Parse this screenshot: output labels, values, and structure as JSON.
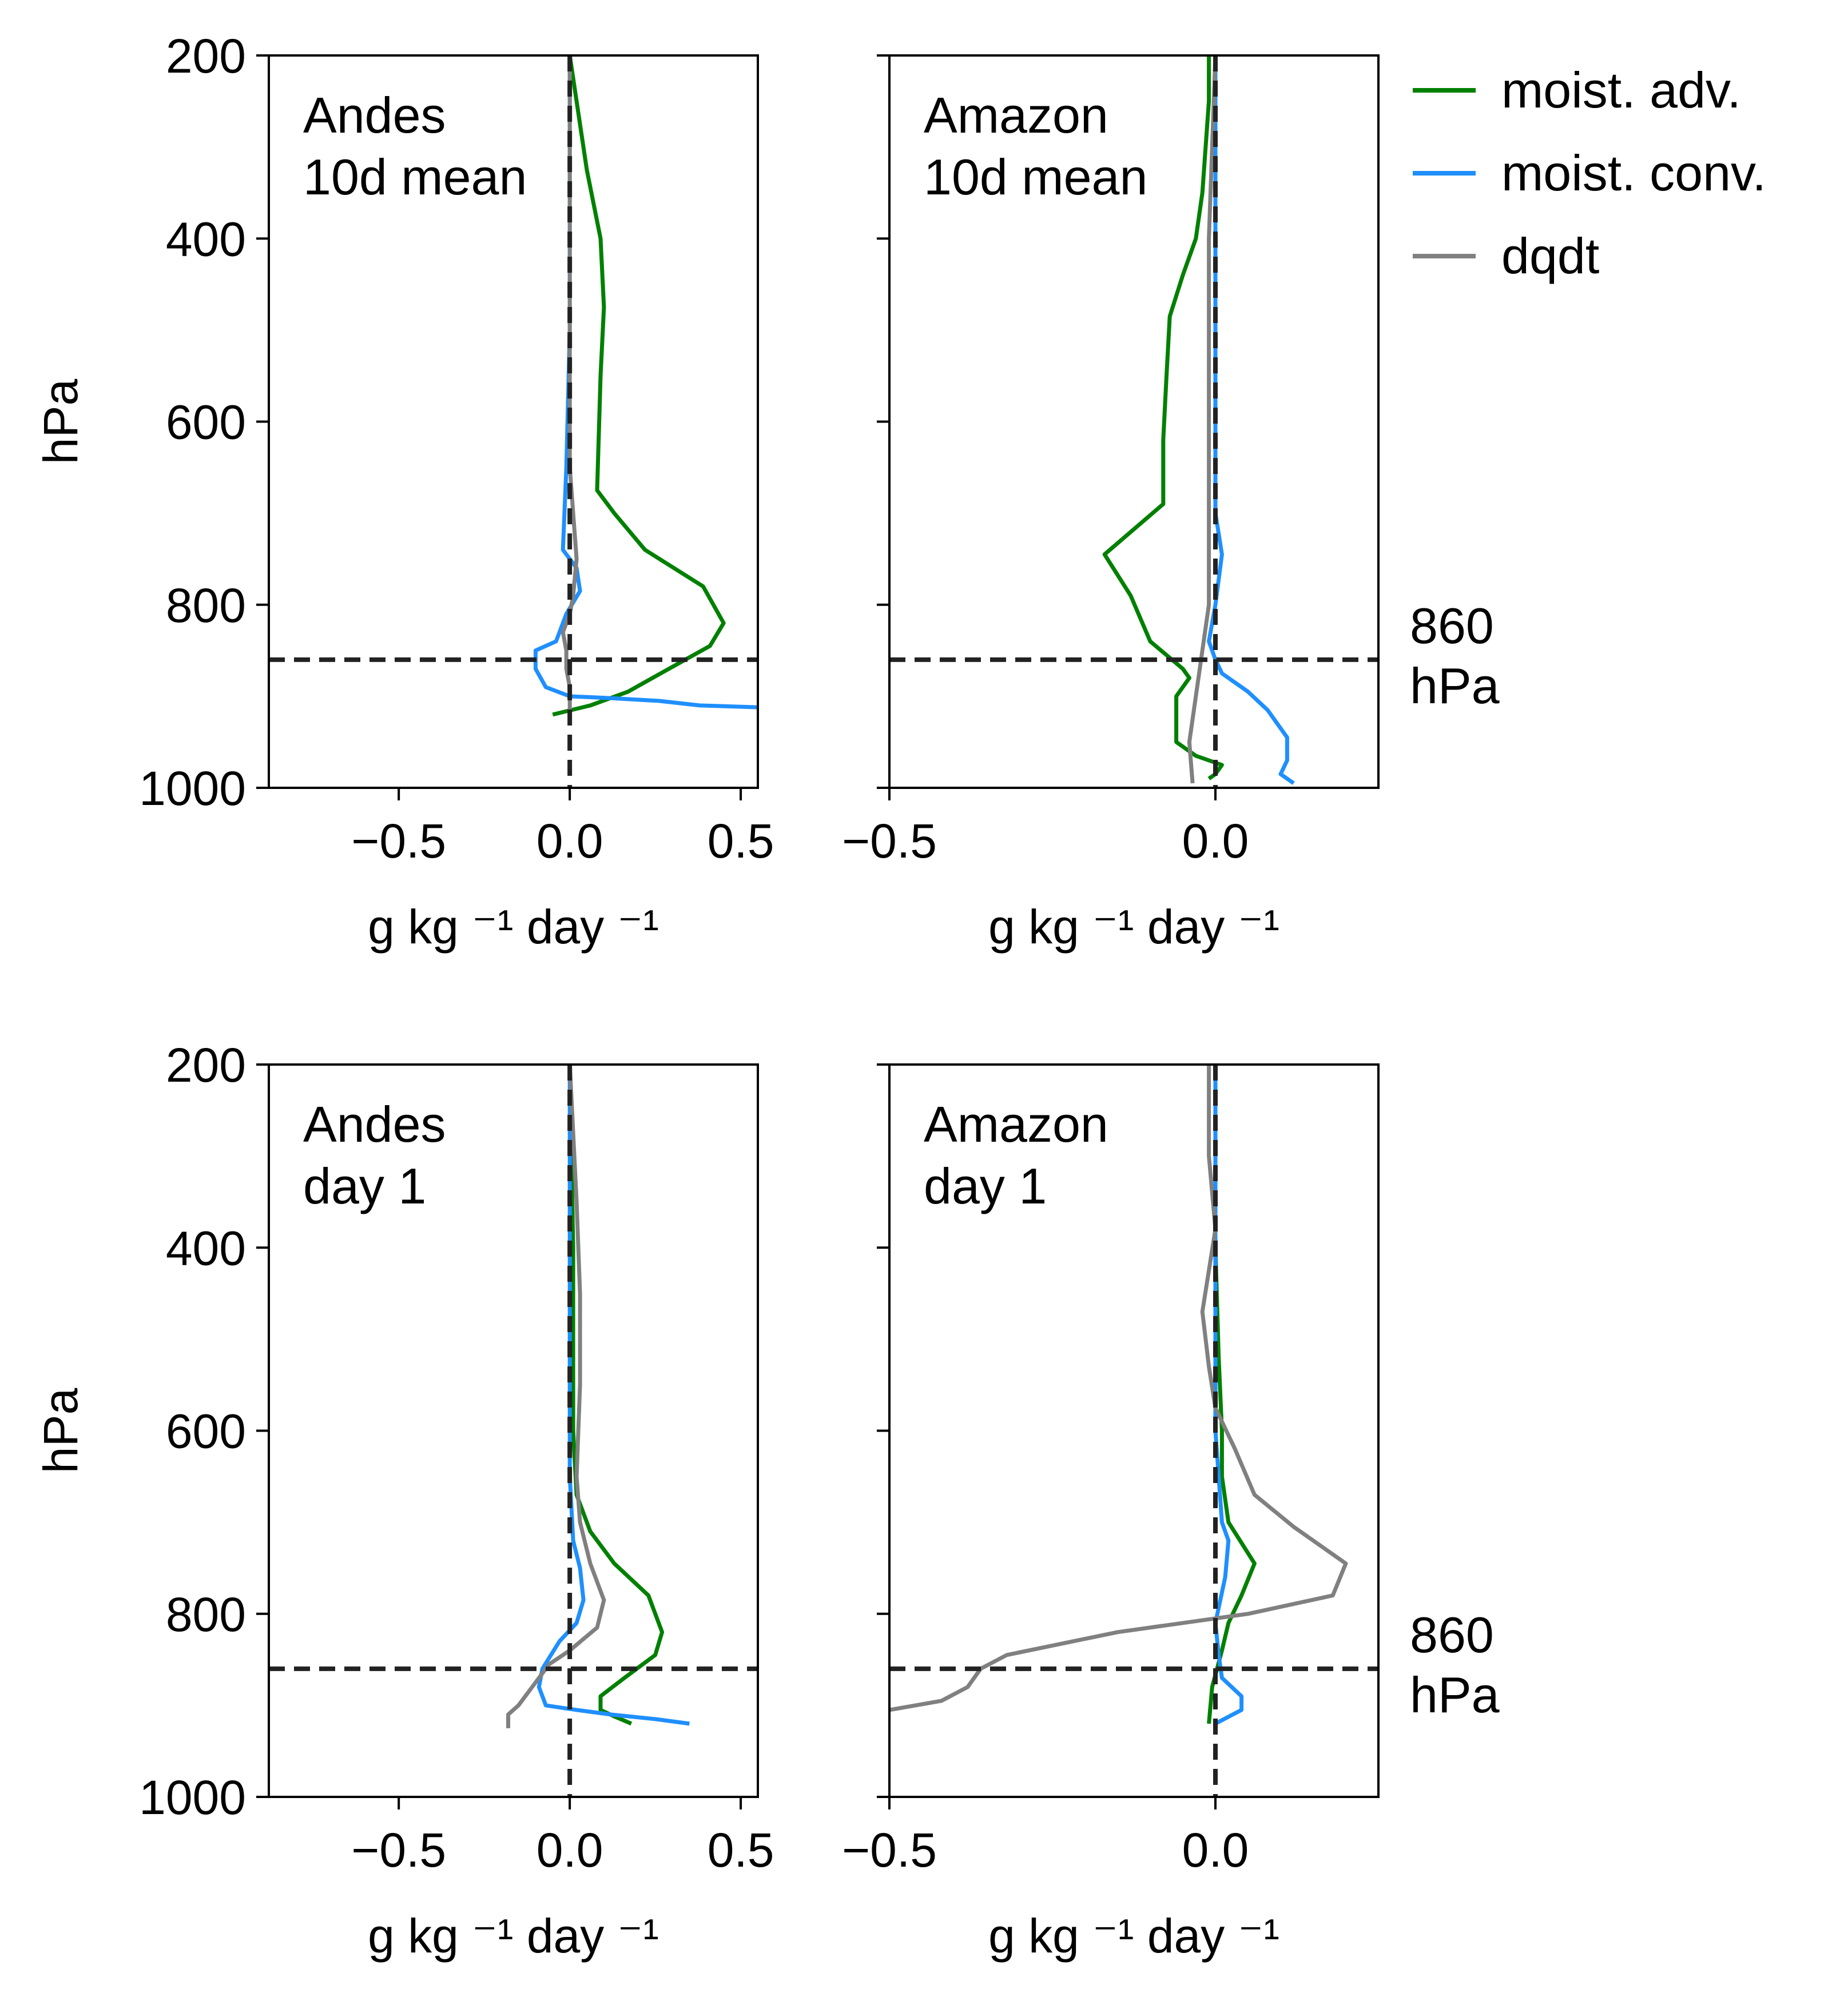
{
  "colors": {
    "moist_adv": "#008000",
    "moist_conv": "#1f8fff",
    "dqdt": "#808080",
    "reference": "#222222",
    "axes": "#000000"
  },
  "legend": {
    "placement": "right of top-right panel",
    "items": [
      {
        "key": "moist_adv",
        "label": "moist. adv."
      },
      {
        "key": "moist_conv",
        "label": "moist. conv."
      },
      {
        "key": "dqdt",
        "label": "dqdt"
      }
    ]
  },
  "reference": {
    "pressure": 860,
    "label_line1": "860",
    "label_line2": "hPa"
  },
  "chart_data": [
    {
      "type": "line",
      "title_lines": [
        "Andes",
        "10d mean"
      ],
      "xlabel": "g kg ⁻¹ day ⁻¹",
      "ylabel": "hPa",
      "xlim": [
        -0.88,
        0.55
      ],
      "ylim": [
        1000,
        200
      ],
      "y_inverted": true,
      "xticks": [
        -0.5,
        0.0,
        0.5
      ],
      "xtick_labels": [
        "−0.5",
        "0.0",
        "0.5"
      ],
      "yticks": [
        200,
        400,
        600,
        800,
        1000
      ],
      "ytick_labels": [
        "200",
        "400",
        "600",
        "800",
        "1000"
      ],
      "grid": false,
      "series": [
        {
          "name": "moist. adv.",
          "key": "moist_adv",
          "points": [
            [
              0.0,
              200
            ],
            [
              0.02,
              250
            ],
            [
              0.05,
              325
            ],
            [
              0.09,
              400
            ],
            [
              0.1,
              475
            ],
            [
              0.09,
              550
            ],
            [
              0.08,
              675
            ],
            [
              0.13,
              700
            ],
            [
              0.22,
              740
            ],
            [
              0.39,
              780
            ],
            [
              0.45,
              820
            ],
            [
              0.41,
              845
            ],
            [
              0.29,
              870
            ],
            [
              0.17,
              895
            ],
            [
              0.06,
              910
            ],
            [
              -0.05,
              920
            ]
          ]
        },
        {
          "name": "moist. conv.",
          "key": "moist_conv",
          "points": [
            [
              0.0,
              200
            ],
            [
              0.0,
              500
            ],
            [
              -0.01,
              650
            ],
            [
              -0.02,
              740
            ],
            [
              0.02,
              760
            ],
            [
              0.03,
              785
            ],
            [
              -0.01,
              810
            ],
            [
              -0.04,
              840
            ],
            [
              -0.1,
              850
            ],
            [
              -0.1,
              870
            ],
            [
              -0.07,
              890
            ],
            [
              0.0,
              900
            ],
            [
              0.12,
              902
            ],
            [
              0.26,
              905
            ],
            [
              0.38,
              910
            ],
            [
              0.55,
              912
            ]
          ]
        },
        {
          "name": "dqdt",
          "key": "dqdt",
          "points": [
            [
              0.0,
              200
            ],
            [
              0.0,
              500
            ],
            [
              0.0,
              650
            ],
            [
              0.01,
              700
            ],
            [
              0.02,
              750
            ],
            [
              0.01,
              790
            ],
            [
              0.0,
              810
            ],
            [
              -0.02,
              830
            ],
            [
              -0.01,
              850
            ],
            [
              -0.01,
              870
            ],
            [
              0.0,
              890
            ],
            [
              0.0,
              920
            ]
          ]
        }
      ]
    },
    {
      "type": "line",
      "title_lines": [
        "Amazon",
        "10d mean"
      ],
      "xlabel": "g kg ⁻¹ day ⁻¹",
      "ylabel": "",
      "xlim": [
        -0.5,
        0.25
      ],
      "ylim": [
        1000,
        200
      ],
      "y_inverted": true,
      "xticks": [
        -0.5,
        0.0
      ],
      "xtick_labels": [
        "−0.5",
        "0.0"
      ],
      "yticks": [
        200,
        400,
        600,
        800,
        1000
      ],
      "ytick_labels": [
        "",
        "",
        "",
        "",
        ""
      ],
      "grid": false,
      "series": [
        {
          "name": "moist. adv.",
          "key": "moist_adv",
          "points": [
            [
              -0.01,
              200
            ],
            [
              -0.01,
              250
            ],
            [
              -0.015,
              300
            ],
            [
              -0.02,
              350
            ],
            [
              -0.03,
              400
            ],
            [
              -0.05,
              440
            ],
            [
              -0.07,
              485
            ],
            [
              -0.075,
              550
            ],
            [
              -0.08,
              620
            ],
            [
              -0.08,
              690
            ],
            [
              -0.17,
              745
            ],
            [
              -0.13,
              790
            ],
            [
              -0.1,
              840
            ],
            [
              -0.05,
              870
            ],
            [
              -0.04,
              880
            ],
            [
              -0.06,
              900
            ],
            [
              -0.06,
              950
            ],
            [
              -0.03,
              965
            ],
            [
              0.01,
              975
            ],
            [
              0.0,
              985
            ],
            [
              -0.01,
              990
            ]
          ]
        },
        {
          "name": "moist. conv.",
          "key": "moist_conv",
          "points": [
            [
              0.0,
              200
            ],
            [
              0.0,
              650
            ],
            [
              0.0,
              700
            ],
            [
              0.01,
              745
            ],
            [
              0.0,
              800
            ],
            [
              -0.01,
              840
            ],
            [
              0.0,
              860
            ],
            [
              0.01,
              875
            ],
            [
              0.05,
              895
            ],
            [
              0.08,
              915
            ],
            [
              0.11,
              945
            ],
            [
              0.11,
              970
            ],
            [
              0.1,
              985
            ],
            [
              0.12,
              995
            ]
          ]
        },
        {
          "name": "dqdt",
          "key": "dqdt",
          "points": [
            [
              0.0,
              200
            ],
            [
              -0.01,
              400
            ],
            [
              -0.01,
              600
            ],
            [
              -0.01,
              800
            ],
            [
              -0.02,
              850
            ],
            [
              -0.03,
              900
            ],
            [
              -0.04,
              950
            ],
            [
              -0.035,
              995
            ]
          ]
        }
      ]
    },
    {
      "type": "line",
      "title_lines": [
        "Andes",
        "day 1"
      ],
      "xlabel": "g kg ⁻¹ day ⁻¹",
      "ylabel": "hPa",
      "xlim": [
        -0.88,
        0.55
      ],
      "ylim": [
        1000,
        200
      ],
      "y_inverted": true,
      "xticks": [
        -0.5,
        0.0,
        0.5
      ],
      "xtick_labels": [
        "−0.5",
        "0.0",
        "0.5"
      ],
      "yticks": [
        200,
        400,
        600,
        800,
        1000
      ],
      "ytick_labels": [
        "200",
        "400",
        "600",
        "800",
        "1000"
      ],
      "grid": false,
      "series": [
        {
          "name": "moist. adv.",
          "key": "moist_adv",
          "points": [
            [
              0.0,
              200
            ],
            [
              0.01,
              400
            ],
            [
              0.01,
              600
            ],
            [
              0.02,
              670
            ],
            [
              0.06,
              710
            ],
            [
              0.13,
              745
            ],
            [
              0.23,
              780
            ],
            [
              0.27,
              820
            ],
            [
              0.25,
              845
            ],
            [
              0.16,
              870
            ],
            [
              0.09,
              890
            ],
            [
              0.09,
              905
            ],
            [
              0.13,
              912
            ],
            [
              0.18,
              920
            ]
          ]
        },
        {
          "name": "moist. conv.",
          "key": "moist_conv",
          "points": [
            [
              0.0,
              200
            ],
            [
              0.0,
              500
            ],
            [
              0.0,
              650
            ],
            [
              0.01,
              720
            ],
            [
              0.03,
              750
            ],
            [
              0.04,
              785
            ],
            [
              0.02,
              810
            ],
            [
              -0.03,
              830
            ],
            [
              -0.08,
              860
            ],
            [
              -0.09,
              880
            ],
            [
              -0.07,
              900
            ],
            [
              0.02,
              905
            ],
            [
              0.12,
              910
            ],
            [
              0.25,
              915
            ],
            [
              0.35,
              920
            ]
          ]
        },
        {
          "name": "dqdt",
          "key": "dqdt",
          "points": [
            [
              0.0,
              200
            ],
            [
              0.02,
              350
            ],
            [
              0.03,
              450
            ],
            [
              0.03,
              550
            ],
            [
              0.02,
              650
            ],
            [
              0.03,
              700
            ],
            [
              0.06,
              745
            ],
            [
              0.1,
              785
            ],
            [
              0.08,
              815
            ],
            [
              0.0,
              840
            ],
            [
              -0.06,
              855
            ],
            [
              -0.11,
              880
            ],
            [
              -0.15,
              900
            ],
            [
              -0.18,
              910
            ],
            [
              -0.18,
              925
            ]
          ]
        }
      ]
    },
    {
      "type": "line",
      "title_lines": [
        "Amazon",
        "day 1"
      ],
      "xlabel": "g kg ⁻¹ day ⁻¹",
      "ylabel": "",
      "xlim": [
        -0.5,
        0.25
      ],
      "ylim": [
        1000,
        200
      ],
      "y_inverted": true,
      "xticks": [
        -0.5,
        0.0
      ],
      "xtick_labels": [
        "−0.5",
        "0.0"
      ],
      "yticks": [
        200,
        400,
        600,
        800,
        1000
      ],
      "ytick_labels": [
        "",
        "",
        "",
        "",
        ""
      ],
      "grid": false,
      "series": [
        {
          "name": "moist. adv.",
          "key": "moist_adv",
          "points": [
            [
              0.0,
              200
            ],
            [
              0.0,
              400
            ],
            [
              0.005,
              520
            ],
            [
              0.01,
              600
            ],
            [
              0.01,
              650
            ],
            [
              0.02,
              700
            ],
            [
              0.06,
              745
            ],
            [
              0.04,
              780
            ],
            [
              0.02,
              810
            ],
            [
              0.01,
              840
            ],
            [
              -0.005,
              880
            ],
            [
              -0.01,
              920
            ]
          ]
        },
        {
          "name": "moist. conv.",
          "key": "moist_conv",
          "points": [
            [
              0.0,
              200
            ],
            [
              0.0,
              600
            ],
            [
              0.01,
              700
            ],
            [
              0.02,
              720
            ],
            [
              0.015,
              760
            ],
            [
              0.0,
              810
            ],
            [
              0.005,
              845
            ],
            [
              0.01,
              870
            ],
            [
              0.04,
              890
            ],
            [
              0.04,
              905
            ],
            [
              0.0,
              920
            ]
          ]
        },
        {
          "name": "dqdt",
          "key": "dqdt",
          "points": [
            [
              -0.01,
              200
            ],
            [
              -0.01,
              300
            ],
            [
              0.0,
              380
            ],
            [
              -0.02,
              470
            ],
            [
              -0.01,
              530
            ],
            [
              0.0,
              575
            ],
            [
              0.03,
              620
            ],
            [
              0.06,
              670
            ],
            [
              0.12,
              705
            ],
            [
              0.2,
              745
            ],
            [
              0.18,
              780
            ],
            [
              0.05,
              800
            ],
            [
              -0.15,
              820
            ],
            [
              -0.32,
              845
            ],
            [
              -0.36,
              860
            ],
            [
              -0.38,
              880
            ],
            [
              -0.42,
              895
            ],
            [
              -0.5,
              905
            ]
          ]
        }
      ]
    }
  ]
}
